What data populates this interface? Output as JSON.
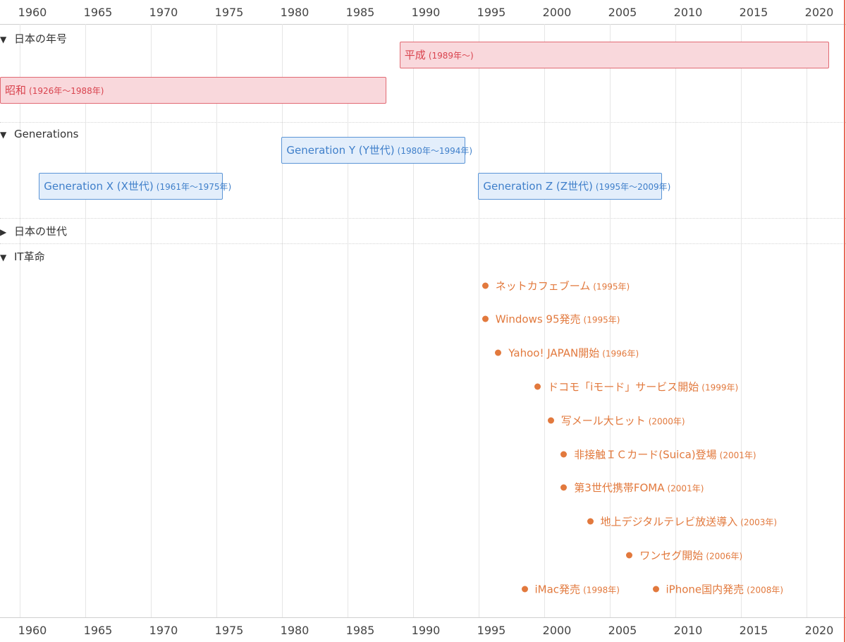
{
  "colors": {
    "era": "#e16a73",
    "generation": "#5b95d6",
    "event": "#e2793d",
    "now_marker": "#e96a5c"
  },
  "axis": {
    "ticks": [
      "1960",
      "1965",
      "1970",
      "1975",
      "1980",
      "1985",
      "1990",
      "1995",
      "2000",
      "2005",
      "2010",
      "2015",
      "2020"
    ]
  },
  "groups": [
    {
      "label": "日本の年号",
      "expanded": true,
      "arrow_icon": "triangle-down-icon",
      "items": [
        {
          "label": "平成",
          "sub": "(1989年〜)",
          "start": 1988.0,
          "end": 2020.9,
          "lane": 0
        },
        {
          "label": "昭和",
          "sub": "(1926年〜1988年)",
          "start": 1926.0,
          "end": 1987.0,
          "lane": 1
        }
      ]
    },
    {
      "label": "Generations",
      "expanded": true,
      "arrow_icon": "triangle-down-icon",
      "items": [
        {
          "label": "Generation Y (Y世代)",
          "sub": "(1980年〜1994年)",
          "start": 1979.0,
          "end": 1993.0,
          "lane": 0
        },
        {
          "label": "Generation X (X世代)",
          "sub": "(1961年〜1975年)",
          "start": 1960.5,
          "end": 1974.5,
          "lane": 1
        },
        {
          "label": "Generation Z (Z世代)",
          "sub": "(1995年〜2009年)",
          "start": 1994.0,
          "end": 2008.0,
          "lane": 1
        }
      ]
    },
    {
      "label": "日本の世代",
      "expanded": false,
      "arrow_icon": "triangle-right-icon",
      "items": []
    },
    {
      "label": "IT革命",
      "expanded": true,
      "arrow_icon": "triangle-down-icon",
      "items": [
        {
          "label": "ネットカフェブーム",
          "sub": "(1995年)",
          "year": 1994.5,
          "lane": 0
        },
        {
          "label": "Windows 95発売",
          "sub": "(1995年)",
          "year": 1994.5,
          "lane": 1
        },
        {
          "label": "Yahoo! JAPAN開始",
          "sub": "(1996年)",
          "year": 1995.5,
          "lane": 2
        },
        {
          "label": "ドコモ「iモード」サービス開始",
          "sub": "(1999年)",
          "year": 1998.5,
          "lane": 3
        },
        {
          "label": "写メール大ヒット",
          "sub": "(2000年)",
          "year": 1999.5,
          "lane": 4
        },
        {
          "label": "非接触ＩＣカード(Suica)登場",
          "sub": "(2001年)",
          "year": 2000.5,
          "lane": 5
        },
        {
          "label": "第3世代携帯FOMA",
          "sub": "(2001年)",
          "year": 2000.5,
          "lane": 6
        },
        {
          "label": "地上デジタルテレビ放送導入",
          "sub": "(2003年)",
          "year": 2002.5,
          "lane": 7
        },
        {
          "label": "ワンセグ開始",
          "sub": "(2006年)",
          "year": 2005.5,
          "lane": 8
        },
        {
          "label": "iMac発売",
          "sub": "(1998年)",
          "year": 1997.5,
          "lane": 9
        },
        {
          "label": "iPhone国内発売",
          "sub": "(2008年)",
          "year": 2007.5,
          "lane": 9
        }
      ]
    }
  ],
  "now_year": 2020.9
}
